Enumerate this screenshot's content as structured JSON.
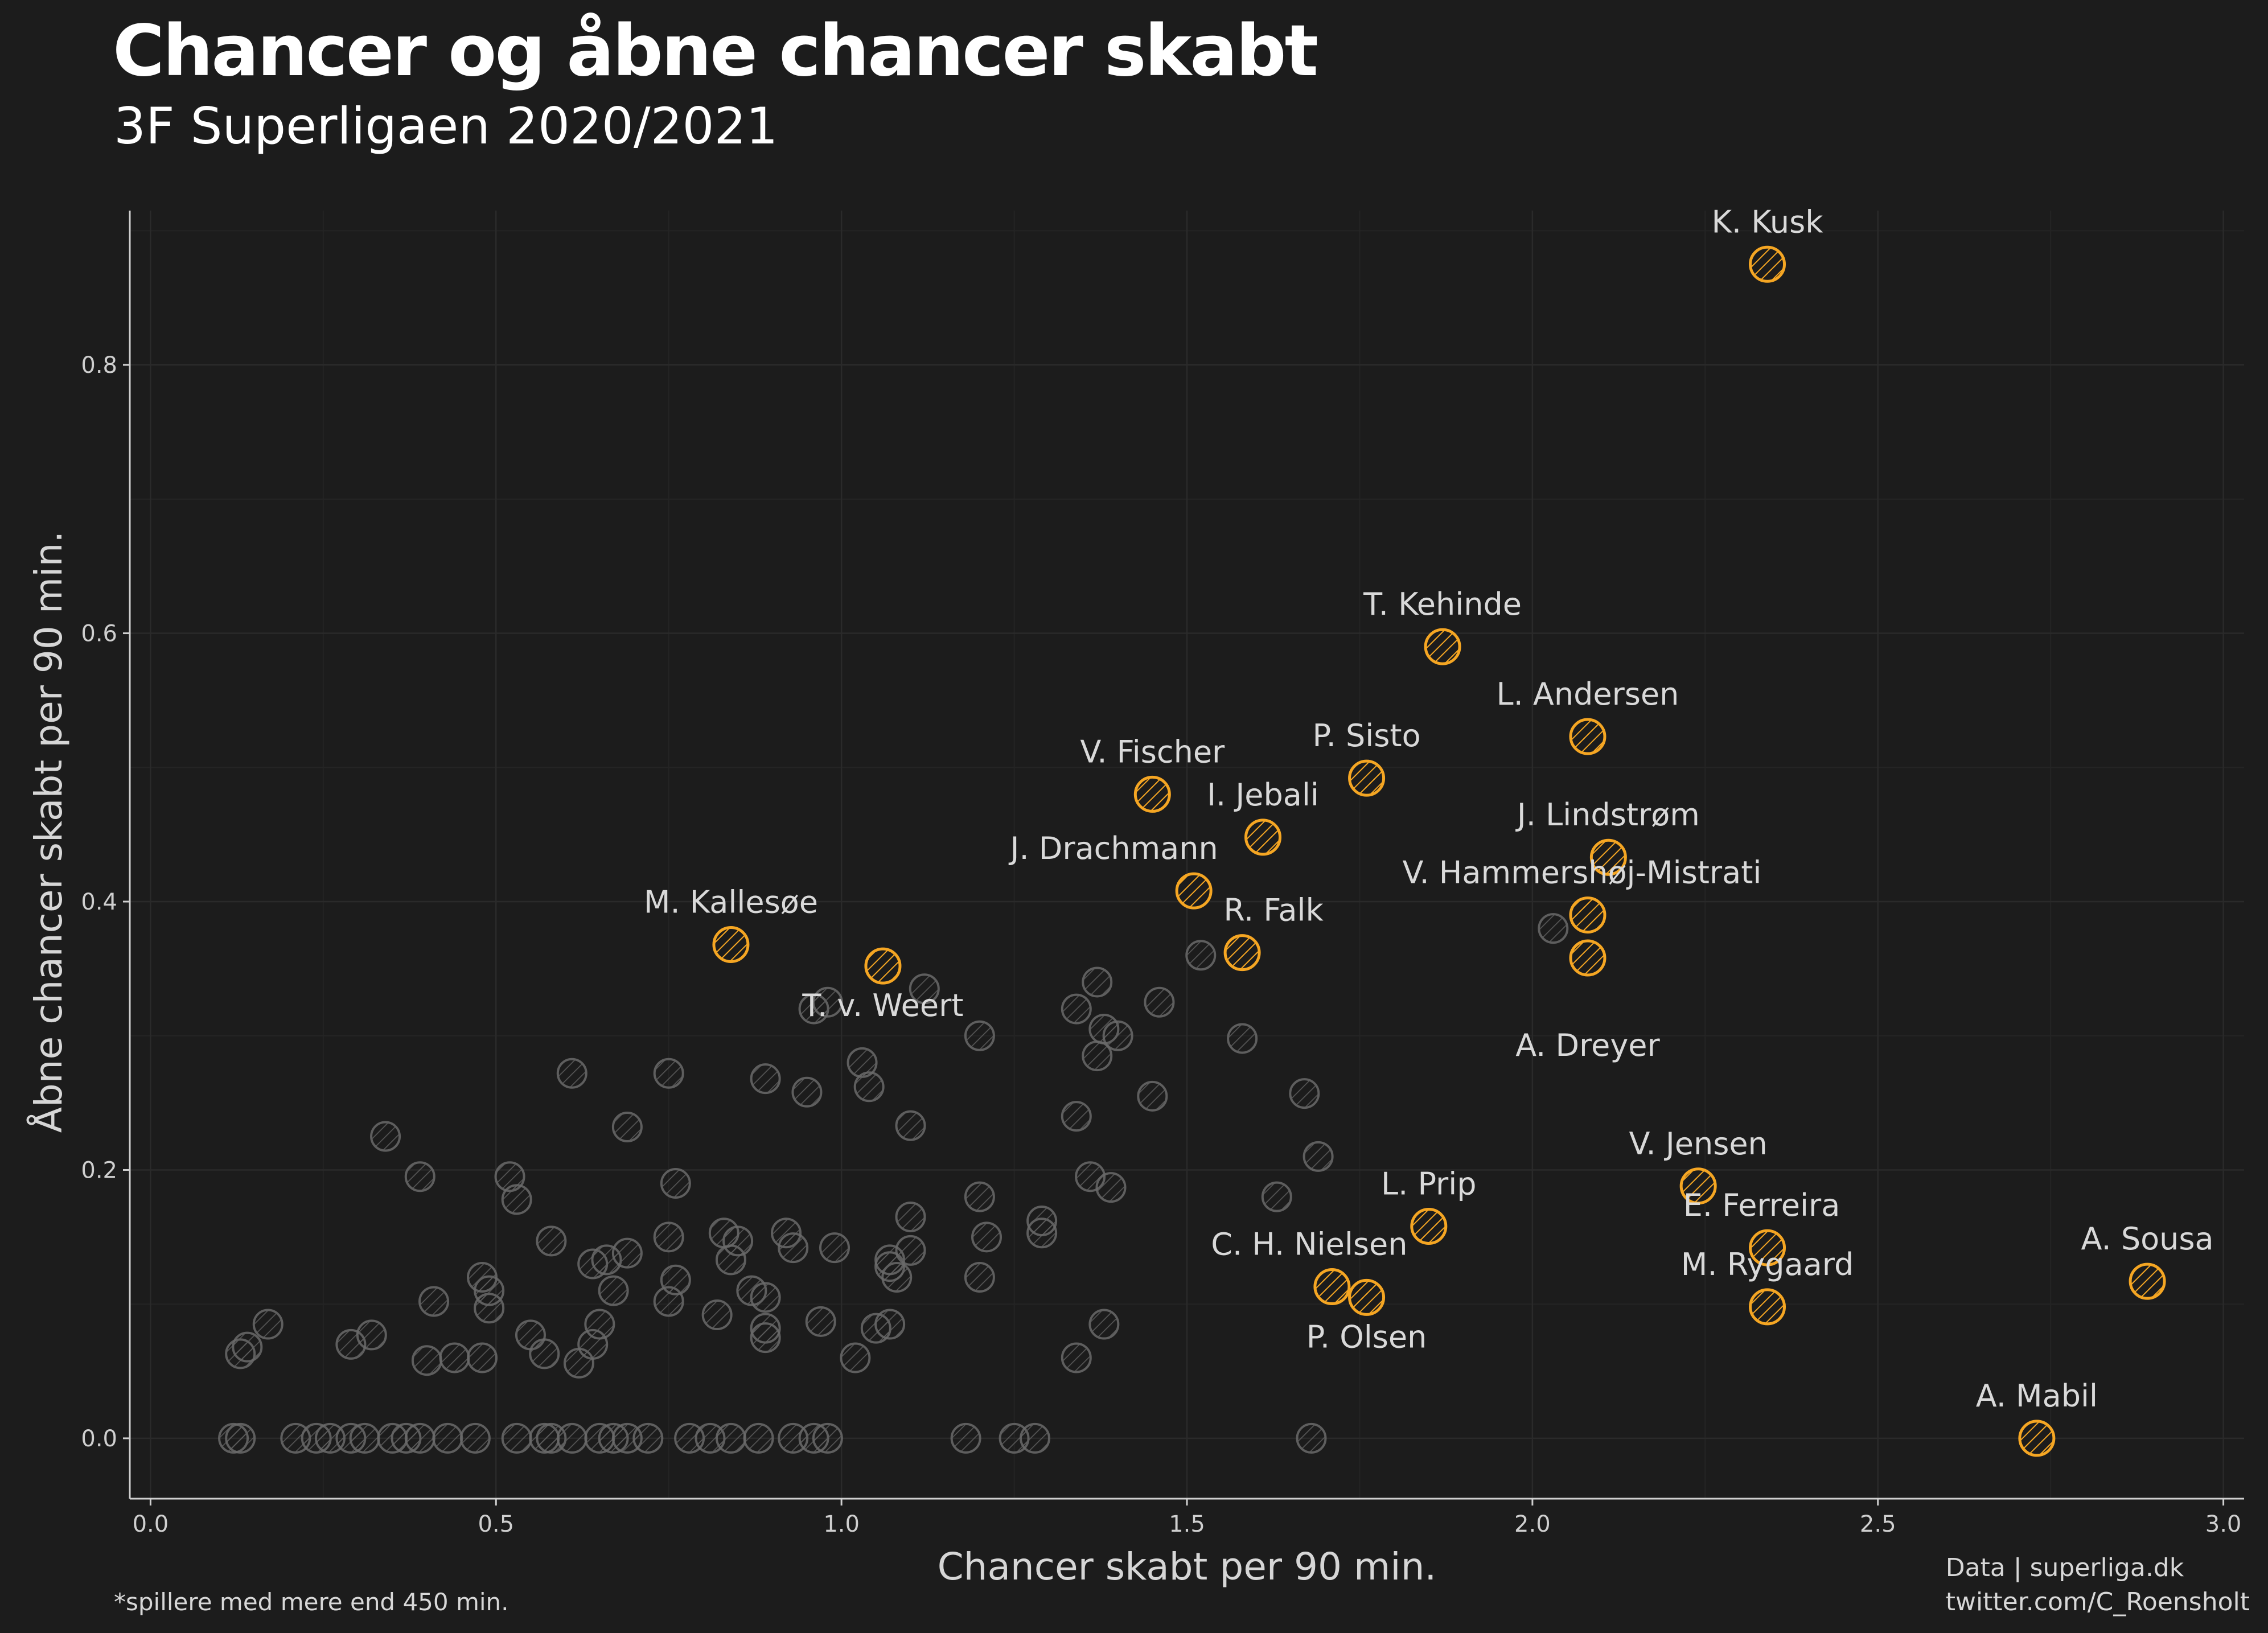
{
  "header": {
    "title": "Chancer og åbne chancer skabt",
    "subtitle": "3F Superligaen 2020/2021"
  },
  "footer": {
    "note": "*spillere med mere end 450 min.",
    "source_line1": "Data | superliga.dk",
    "source_line2": "twitter.com/C_Roensholt"
  },
  "colors": {
    "background": "#1c1c1c",
    "highlight": "#f5a623",
    "other": "#6a6a6a",
    "grid": "#2a2a2a",
    "axis": "#d0d0d0"
  },
  "chart_data": {
    "type": "scatter",
    "xlabel": "Chancer skabt per 90 min.",
    "ylabel": "Åbne chancer skabt per 90 min.",
    "xlim": [
      -0.03,
      3.03
    ],
    "ylim": [
      -0.045,
      0.915
    ],
    "xticks": [
      0.0,
      0.5,
      1.0,
      1.5,
      2.0,
      2.5,
      3.0
    ],
    "yticks": [
      0.0,
      0.2,
      0.4,
      0.6,
      0.8
    ],
    "grid": true,
    "highlighted": [
      {
        "name": "K. Kusk",
        "x": 2.34,
        "y": 0.875
      },
      {
        "name": "T. Kehinde",
        "x": 1.87,
        "y": 0.59
      },
      {
        "name": "L. Andersen",
        "x": 2.08,
        "y": 0.523
      },
      {
        "name": "P. Sisto",
        "x": 1.76,
        "y": 0.492
      },
      {
        "name": "V. Fischer",
        "x": 1.45,
        "y": 0.48
      },
      {
        "name": "I. Jebali",
        "x": 1.61,
        "y": 0.448
      },
      {
        "name": "J. Lindstrøm",
        "x": 2.11,
        "y": 0.433
      },
      {
        "name": "J. Drachmann",
        "x": 1.51,
        "y": 0.408
      },
      {
        "name": "V. Hammershøj-Mistrati",
        "x": 2.08,
        "y": 0.39
      },
      {
        "name": "R. Falk",
        "x": 1.58,
        "y": 0.362
      },
      {
        "name": "M. Kallesøe",
        "x": 0.84,
        "y": 0.368
      },
      {
        "name": "T. v. Weert",
        "x": 1.06,
        "y": 0.352
      },
      {
        "name": "A. Dreyer",
        "x": 2.08,
        "y": 0.358
      },
      {
        "name": "V. Jensen",
        "x": 2.24,
        "y": 0.188
      },
      {
        "name": "L. Prip",
        "x": 1.85,
        "y": 0.158
      },
      {
        "name": "E. Ferreira",
        "x": 2.34,
        "y": 0.142
      },
      {
        "name": "C. H. Nielsen",
        "x": 1.71,
        "y": 0.113
      },
      {
        "name": "P. Olsen",
        "x": 1.76,
        "y": 0.105
      },
      {
        "name": "M. Rygaard",
        "x": 2.34,
        "y": 0.098
      },
      {
        "name": "A. Sousa",
        "x": 2.89,
        "y": 0.117
      },
      {
        "name": "A. Mabil",
        "x": 2.73,
        "y": 0.0
      }
    ],
    "others": [
      [
        0.12,
        0.0
      ],
      [
        0.13,
        0.0
      ],
      [
        0.21,
        0.0
      ],
      [
        0.24,
        0.0
      ],
      [
        0.26,
        0.0
      ],
      [
        0.29,
        0.0
      ],
      [
        0.31,
        0.0
      ],
      [
        0.35,
        0.0
      ],
      [
        0.37,
        0.0
      ],
      [
        0.39,
        0.0
      ],
      [
        0.43,
        0.0
      ],
      [
        0.47,
        0.0
      ],
      [
        0.53,
        0.0
      ],
      [
        0.57,
        0.0
      ],
      [
        0.58,
        0.0
      ],
      [
        0.61,
        0.0
      ],
      [
        0.65,
        0.0
      ],
      [
        0.67,
        0.0
      ],
      [
        0.69,
        0.0
      ],
      [
        0.72,
        0.0
      ],
      [
        0.78,
        0.0
      ],
      [
        0.81,
        0.0
      ],
      [
        0.84,
        0.0
      ],
      [
        0.88,
        0.0
      ],
      [
        0.93,
        0.0
      ],
      [
        0.96,
        0.0
      ],
      [
        0.98,
        0.0
      ],
      [
        1.18,
        0.0
      ],
      [
        1.25,
        0.0
      ],
      [
        1.28,
        0.0
      ],
      [
        1.68,
        0.0
      ],
      [
        0.13,
        0.063
      ],
      [
        0.14,
        0.068
      ],
      [
        0.17,
        0.085
      ],
      [
        0.29,
        0.07
      ],
      [
        0.32,
        0.077
      ],
      [
        0.4,
        0.058
      ],
      [
        0.41,
        0.102
      ],
      [
        0.44,
        0.06
      ],
      [
        0.48,
        0.06
      ],
      [
        0.49,
        0.097
      ],
      [
        0.49,
        0.11
      ],
      [
        0.48,
        0.12
      ],
      [
        0.55,
        0.077
      ],
      [
        0.57,
        0.063
      ],
      [
        0.62,
        0.056
      ],
      [
        0.64,
        0.07
      ],
      [
        0.65,
        0.085
      ],
      [
        0.67,
        0.11
      ],
      [
        0.64,
        0.13
      ],
      [
        0.66,
        0.133
      ],
      [
        0.69,
        0.138
      ],
      [
        0.58,
        0.147
      ],
      [
        0.75,
        0.102
      ],
      [
        0.76,
        0.118
      ],
      [
        0.75,
        0.15
      ],
      [
        0.82,
        0.092
      ],
      [
        0.84,
        0.133
      ],
      [
        0.85,
        0.147
      ],
      [
        0.83,
        0.153
      ],
      [
        0.87,
        0.11
      ],
      [
        0.89,
        0.105
      ],
      [
        0.89,
        0.082
      ],
      [
        0.89,
        0.075
      ],
      [
        0.92,
        0.153
      ],
      [
        0.93,
        0.142
      ],
      [
        0.97,
        0.087
      ],
      [
        0.99,
        0.142
      ],
      [
        1.05,
        0.082
      ],
      [
        1.07,
        0.085
      ],
      [
        1.08,
        0.12
      ],
      [
        1.07,
        0.128
      ],
      [
        1.07,
        0.133
      ],
      [
        1.1,
        0.14
      ],
      [
        1.1,
        0.165
      ],
      [
        1.02,
        0.06
      ],
      [
        1.2,
        0.12
      ],
      [
        1.21,
        0.15
      ],
      [
        1.2,
        0.18
      ],
      [
        1.29,
        0.153
      ],
      [
        1.29,
        0.162
      ],
      [
        1.34,
        0.06
      ],
      [
        1.38,
        0.085
      ],
      [
        1.36,
        0.195
      ],
      [
        1.39,
        0.187
      ],
      [
        1.34,
        0.24
      ],
      [
        1.45,
        0.255
      ],
      [
        1.34,
        0.32
      ],
      [
        1.37,
        0.34
      ],
      [
        1.37,
        0.285
      ],
      [
        1.38,
        0.305
      ],
      [
        1.4,
        0.3
      ],
      [
        1.46,
        0.325
      ],
      [
        1.52,
        0.36
      ],
      [
        1.58,
        0.298
      ],
      [
        1.63,
        0.18
      ],
      [
        1.67,
        0.257
      ],
      [
        1.69,
        0.21
      ],
      [
        2.03,
        0.38
      ],
      [
        0.34,
        0.225
      ],
      [
        0.39,
        0.195
      ],
      [
        0.52,
        0.195
      ],
      [
        0.53,
        0.178
      ],
      [
        0.61,
        0.272
      ],
      [
        0.69,
        0.232
      ],
      [
        0.75,
        0.272
      ],
      [
        0.76,
        0.19
      ],
      [
        0.89,
        0.268
      ],
      [
        0.95,
        0.258
      ],
      [
        0.96,
        0.32
      ],
      [
        0.98,
        0.325
      ],
      [
        1.03,
        0.28
      ],
      [
        1.04,
        0.262
      ],
      [
        1.1,
        0.233
      ],
      [
        1.12,
        0.335
      ],
      [
        1.2,
        0.3
      ]
    ]
  }
}
